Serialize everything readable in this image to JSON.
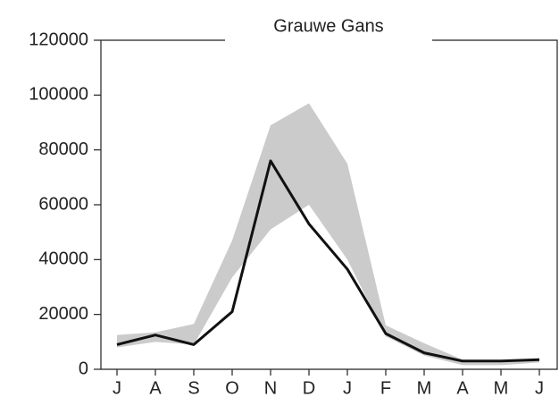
{
  "chart_data": {
    "type": "line",
    "title": "Grauwe Gans",
    "categories": [
      "J",
      "A",
      "S",
      "O",
      "N",
      "D",
      "J",
      "F",
      "M",
      "A",
      "M",
      "J"
    ],
    "band": {
      "color": "#cbcbcb",
      "upper": [
        12500,
        13500,
        16500,
        47000,
        89000,
        97000,
        75000,
        16000,
        9500,
        3500,
        3000,
        4000
      ],
      "lower": [
        8000,
        10000,
        9000,
        33500,
        51000,
        60000,
        40000,
        12000,
        5000,
        1500,
        1500,
        2500
      ]
    },
    "series": [
      {
        "color": "#111111",
        "values": [
          9000,
          12500,
          9000,
          21000,
          76000,
          53000,
          36500,
          13000,
          6000,
          3000,
          3000,
          3500
        ]
      }
    ],
    "ylim": [
      0,
      120000
    ],
    "yticks": [
      0,
      20000,
      40000,
      60000,
      80000,
      100000,
      120000
    ]
  }
}
